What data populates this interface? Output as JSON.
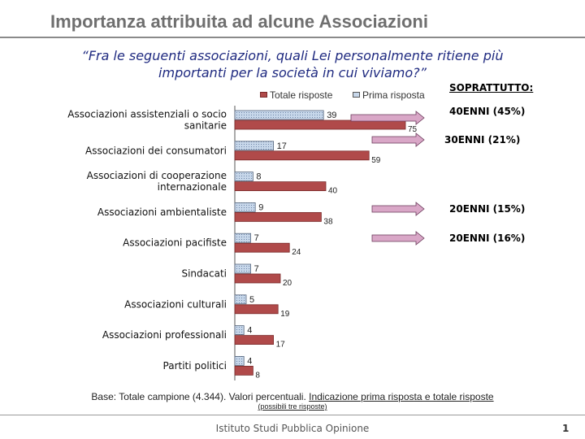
{
  "title": "Importanza attribuita ad alcune Associazioni",
  "question_line1": "“Fra le seguenti associazioni, quali Lei personalmente ritiene più",
  "question_line2": "importanti per la società in cui viviamo?”",
  "sopratt_label": "SOPRATTUTTO:",
  "chart_data": {
    "type": "bar",
    "orientation": "horizontal",
    "categories": [
      [
        "Associazioni assistenziali o socio",
        "sanitarie"
      ],
      [
        "Associazioni dei consumatori"
      ],
      [
        "Associazioni di cooperazione",
        "internazionale"
      ],
      [
        "Associazioni ambientaliste"
      ],
      [
        "Associazioni pacifiste"
      ],
      [
        "Sindacati"
      ],
      [
        "Associazioni culturali"
      ],
      [
        "Associazioni professionali"
      ],
      [
        "Partiti politici"
      ]
    ],
    "series": [
      {
        "name": "Prima risposta",
        "values": [
          39,
          17,
          8,
          9,
          7,
          7,
          5,
          4,
          4
        ],
        "color": "#c7d7ea"
      },
      {
        "name": "Totale risposte",
        "values": [
          75,
          59,
          40,
          38,
          24,
          20,
          19,
          17,
          8
        ],
        "color": "#b04a4a"
      }
    ],
    "legend_position": "top",
    "grid": false,
    "annotations": [
      {
        "category_index": 0,
        "text": "40ENNI (45%)"
      },
      {
        "category_index": 1,
        "text": "30ENNI (21%)"
      },
      {
        "category_index": 3,
        "text": "20ENNI (15%)"
      },
      {
        "category_index": 4,
        "text": "20ENNI (16%)"
      }
    ],
    "annotation_arrow_color": "#d9a7c7"
  },
  "note_base": "Base: Totale campione (4.344). Valori percentuali.",
  "note_indicazione": "Indicazione prima risposta e totale risposte",
  "note_possibili": "(possibili tre risposte)",
  "footer": "Istituto Studi Pubblica Opinione",
  "page_number": "1"
}
